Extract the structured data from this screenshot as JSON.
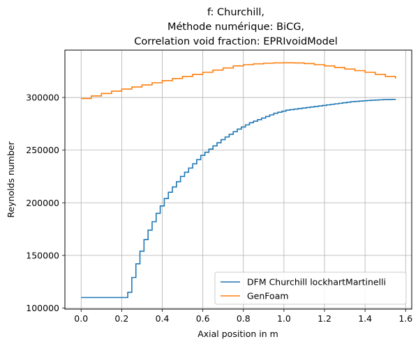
{
  "chart_data": {
    "type": "line",
    "title_lines": [
      "f: Churchill,",
      "Méthode numérique: BiCG,",
      "Correlation void fraction: EPRIvoidModel"
    ],
    "xlabel": "Axial position in m",
    "ylabel": "Reynolds number",
    "xlim": [
      -0.08,
      1.63
    ],
    "ylim": [
      99000,
      345000
    ],
    "xticks": [
      0.0,
      0.2,
      0.4,
      0.6,
      0.8,
      1.0,
      1.2,
      1.4,
      1.6
    ],
    "xtick_labels": [
      "0.0",
      "0.2",
      "0.4",
      "0.6",
      "0.8",
      "1.0",
      "1.2",
      "1.4",
      "1.6"
    ],
    "yticks": [
      100000,
      150000,
      200000,
      250000,
      300000
    ],
    "ytick_labels": [
      "100000",
      "150000",
      "200000",
      "250000",
      "300000"
    ],
    "grid": true,
    "legend_position": "lower right",
    "series": [
      {
        "name": "DFM Churchill lockhartMartinelli",
        "color": "#1f77b4",
        "step": true,
        "x": [
          0,
          0.23,
          0.25,
          0.27,
          0.29,
          0.31,
          0.33,
          0.35,
          0.37,
          0.39,
          0.41,
          0.43,
          0.45,
          0.47,
          0.49,
          0.51,
          0.53,
          0.55,
          0.57,
          0.59,
          0.61,
          0.63,
          0.65,
          0.67,
          0.69,
          0.71,
          0.73,
          0.75,
          0.77,
          0.79,
          0.81,
          0.83,
          0.85,
          0.87,
          0.89,
          0.91,
          0.93,
          0.95,
          0.97,
          0.99,
          1.01,
          1.03,
          1.05,
          1.07,
          1.09,
          1.11,
          1.13,
          1.15,
          1.17,
          1.19,
          1.21,
          1.23,
          1.25,
          1.27,
          1.29,
          1.31,
          1.33,
          1.35,
          1.37,
          1.39,
          1.41,
          1.43,
          1.45,
          1.47,
          1.49,
          1.51,
          1.53,
          1.55
        ],
        "y": [
          110000,
          115000,
          129000,
          142000,
          154000,
          165000,
          174000,
          182000,
          190000,
          197000,
          204000,
          210000,
          215000,
          220000,
          225000,
          229000,
          233000,
          237000,
          241000,
          245000,
          248000,
          251000,
          254000,
          257000,
          260000,
          262500,
          265000,
          267500,
          270000,
          272000,
          274000,
          276000,
          277500,
          279000,
          280500,
          282000,
          283500,
          285000,
          286000,
          287000,
          288000,
          288500,
          289000,
          289500,
          290000,
          290500,
          291000,
          291500,
          292000,
          292500,
          293000,
          293500,
          294000,
          294500,
          295000,
          295500,
          296000,
          296300,
          296600,
          296900,
          297200,
          297400,
          297600,
          297800,
          298000,
          298100,
          298200,
          298300
        ]
      },
      {
        "name": "GenFoam",
        "color": "#ff7f0e",
        "step": true,
        "x": [
          0,
          0.05,
          0.1,
          0.15,
          0.2,
          0.25,
          0.3,
          0.35,
          0.4,
          0.45,
          0.5,
          0.55,
          0.6,
          0.65,
          0.7,
          0.75,
          0.8,
          0.85,
          0.9,
          0.95,
          1.0,
          1.05,
          1.1,
          1.15,
          1.2,
          1.25,
          1.3,
          1.35,
          1.4,
          1.45,
          1.5,
          1.55
        ],
        "y": [
          299000,
          301500,
          303800,
          306000,
          308000,
          310000,
          312000,
          314000,
          316000,
          318000,
          320000,
          322000,
          324000,
          326000,
          328000,
          330000,
          331200,
          332000,
          332600,
          332900,
          333000,
          332800,
          332200,
          331200,
          330000,
          328500,
          327000,
          325500,
          324000,
          322000,
          320000,
          318000
        ]
      }
    ]
  }
}
